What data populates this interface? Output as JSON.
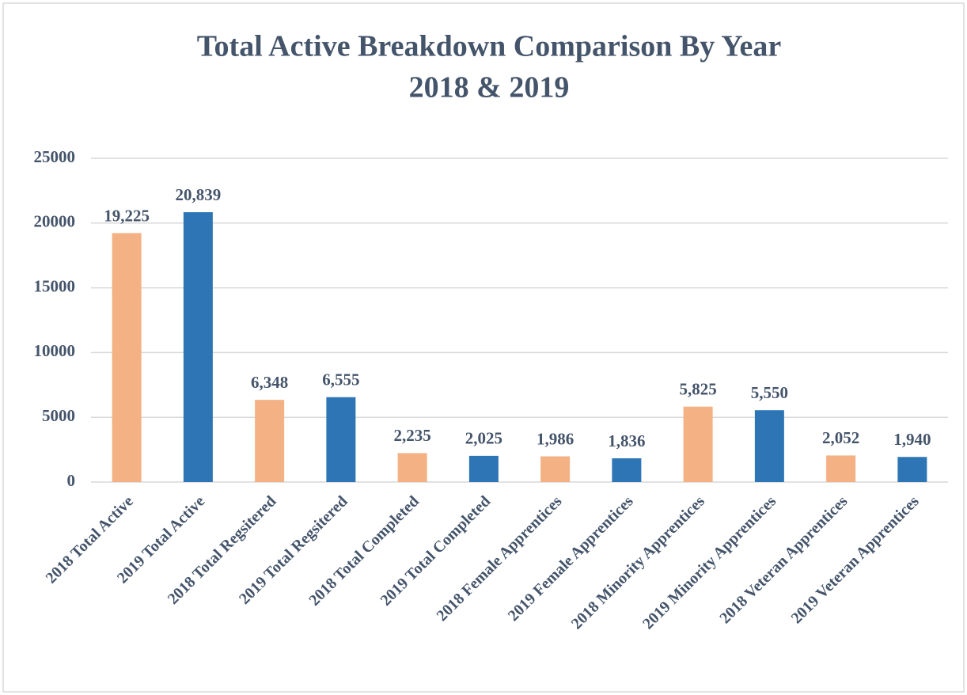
{
  "chart_data": {
    "type": "bar",
    "title": "Total Active Breakdown  Comparison By Year",
    "subtitle": "2018 & 2019",
    "categories": [
      "2018 Total Active",
      "2019 Total Active",
      "2018 Total Regsitered",
      "2019 Total Regsitered",
      "2018 Total Completed",
      "2019 Total Completed",
      "2018 Female Apprentices",
      "2019 Female Apprentices",
      "2018 Minority Apprentices",
      "2019 Minority Apprentices",
      "2018 Veteran Apprentices",
      "2019 Veteran Apprentices"
    ],
    "values": [
      19225,
      20839,
      6348,
      6555,
      2235,
      2025,
      1986,
      1836,
      5825,
      5550,
      2052,
      1940
    ],
    "value_labels": [
      "19,225",
      "20,839",
      "6,348",
      "6,555",
      "2,235",
      "2,025",
      "1,986",
      "1,836",
      "5,825",
      "5,550",
      "2,052",
      "1,940"
    ],
    "colors": [
      "#f4b183",
      "#2e75b6",
      "#f4b183",
      "#2e75b6",
      "#f4b183",
      "#2e75b6",
      "#f4b183",
      "#2e75b6",
      "#f4b183",
      "#2e75b6",
      "#f4b183",
      "#2e75b6"
    ],
    "ylim": [
      0,
      25000
    ],
    "yticks": [
      0,
      5000,
      10000,
      15000,
      20000,
      25000
    ],
    "grid": true
  }
}
